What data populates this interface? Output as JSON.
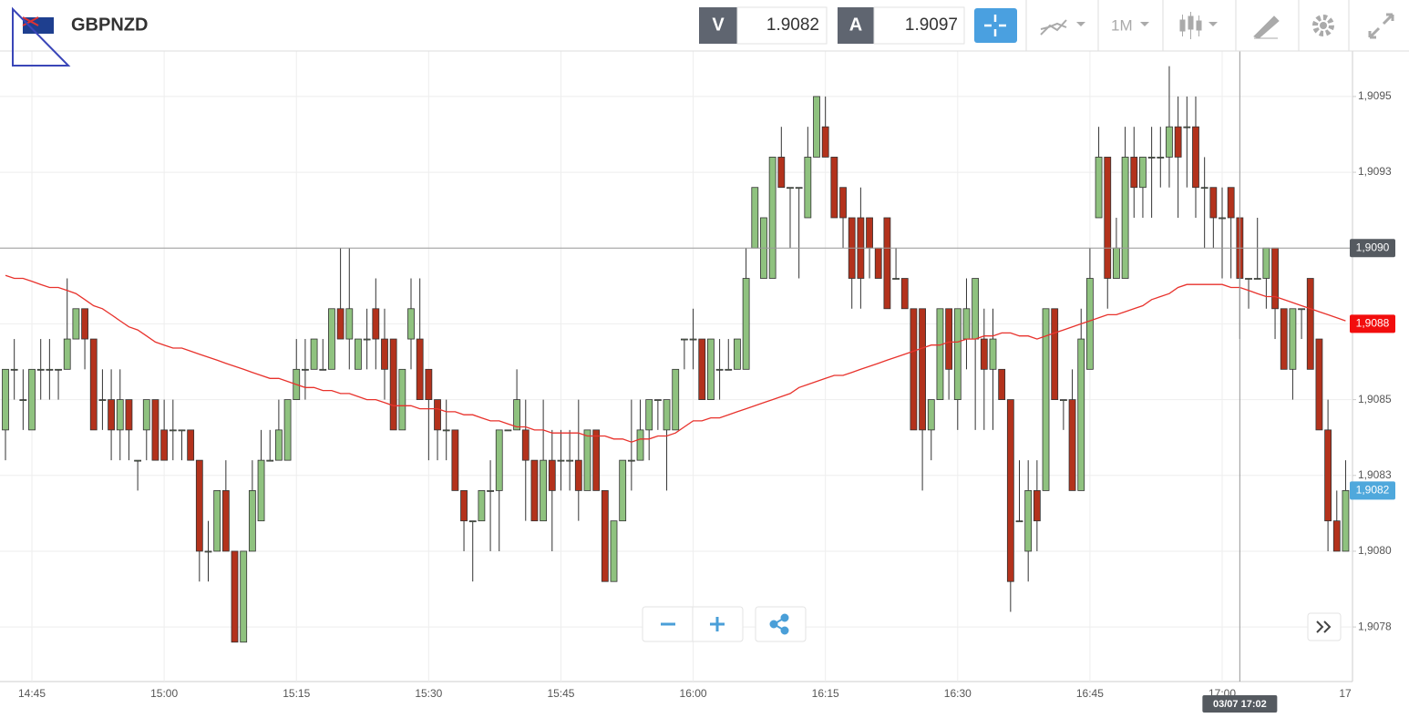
{
  "header": {
    "symbol": "GBPNZD",
    "bid_label": "V",
    "bid": 1.9082,
    "ask_label": "A",
    "ask": 1.9097,
    "timeframe": "1M"
  },
  "chart_data": {
    "type": "candlestick",
    "categories": [
      null,
      null,
      null,
      "14:45",
      null,
      null,
      null,
      null,
      null,
      null,
      null,
      null,
      null,
      null,
      null,
      null,
      null,
      null,
      "15:00",
      null,
      null,
      null,
      null,
      null,
      null,
      null,
      null,
      null,
      null,
      null,
      null,
      null,
      null,
      "15:15",
      null,
      null,
      null,
      null,
      null,
      null,
      null,
      null,
      null,
      null,
      null,
      null,
      null,
      null,
      "15:30",
      null,
      null,
      null,
      null,
      null,
      null,
      null,
      null,
      null,
      null,
      null,
      null,
      null,
      null,
      "15:45",
      null,
      null,
      null,
      null,
      null,
      null,
      null,
      null,
      null,
      null,
      null,
      null,
      null,
      null,
      "16:00",
      null,
      null,
      null,
      null,
      null,
      null,
      null,
      null,
      null,
      null,
      null,
      null,
      null,
      null,
      "16:15",
      null,
      null,
      null,
      null,
      null,
      null,
      null,
      null,
      null,
      null,
      null,
      null,
      null,
      null,
      "16:30",
      null,
      null,
      null,
      null,
      null,
      null,
      null,
      null,
      null,
      null,
      null,
      null,
      null,
      null,
      "16:45",
      null,
      null,
      null,
      null,
      null,
      null,
      null,
      null,
      null,
      null,
      null,
      null,
      null,
      null,
      "17:00",
      null,
      null,
      null,
      null,
      null,
      null,
      null,
      null,
      null,
      null,
      null,
      null,
      null,
      null,
      "17"
    ],
    "open": [
      1.9084,
      1.9086,
      1.9085,
      1.9084,
      1.9086,
      1.9086,
      1.9086,
      1.9086,
      1.9087,
      1.9088,
      1.9087,
      1.9085,
      1.9085,
      1.9084,
      1.9085,
      1.9083,
      1.9084,
      1.9085,
      1.9084,
      1.9084,
      1.9084,
      1.9084,
      1.9083,
      1.908,
      1.908,
      1.9082,
      1.908,
      1.9077,
      1.908,
      1.9081,
      1.9083,
      1.9083,
      1.9083,
      1.9085,
      1.9086,
      1.9086,
      1.9086,
      1.9086,
      1.9088,
      1.9087,
      1.9086,
      1.9087,
      1.9088,
      1.9087,
      1.9087,
      1.9084,
      1.9087,
      1.9087,
      1.9086,
      1.9085,
      1.9084,
      1.9084,
      1.9082,
      1.9081,
      1.9081,
      1.9082,
      1.9082,
      1.9084,
      1.9084,
      1.9084,
      1.9083,
      1.9081,
      1.9083,
      1.9083,
      1.9083,
      1.9083,
      1.9082,
      1.9084,
      1.9082,
      1.9079,
      1.9081,
      1.9083,
      1.9083,
      1.9084,
      1.9085,
      1.9084,
      1.9084,
      1.9087,
      1.9087,
      1.9087,
      1.9085,
      1.9086,
      1.9086,
      1.9086,
      1.9086,
      1.909,
      1.9089,
      1.9089,
      1.9093,
      1.9092,
      1.9092,
      1.9091,
      1.9093,
      1.9094,
      1.9093,
      1.9092,
      1.9091,
      1.9091,
      1.9091,
      1.909,
      1.9091,
      1.9089,
      1.9089,
      1.9088,
      1.9088,
      1.9084,
      1.9085,
      1.9088,
      1.9085,
      1.9087,
      1.9087,
      1.9087,
      1.9086,
      1.9086,
      1.9085,
      1.9081,
      1.908,
      1.9082,
      1.9082,
      1.9088,
      1.9085,
      1.9085,
      1.9082,
      1.9086,
      1.9091,
      1.9093,
      1.9089,
      1.9089,
      1.9093,
      1.9092,
      1.9093,
      1.9093,
      1.9093,
      1.9094,
      1.9094,
      1.9094,
      1.9092,
      1.9092,
      1.9091,
      1.9092,
      1.9091,
      1.9089,
      1.9089,
      1.9089,
      1.909,
      1.9088,
      1.9086,
      1.9088,
      1.9089,
      1.9087,
      1.9084,
      1.9081,
      1.908,
      null
    ],
    "high": [
      1.9086,
      1.9087,
      1.9086,
      1.9086,
      1.9087,
      1.9087,
      1.9086,
      1.9089,
      1.9088,
      1.9088,
      1.9087,
      1.9086,
      1.9086,
      1.9086,
      1.9085,
      1.9083,
      1.9085,
      1.9085,
      1.9085,
      1.9085,
      1.9084,
      1.9084,
      1.9083,
      1.9081,
      1.9082,
      1.9083,
      1.908,
      1.908,
      1.9083,
      1.9084,
      1.9084,
      1.9085,
      1.9085,
      1.9087,
      1.9087,
      1.9087,
      1.9087,
      1.9088,
      1.909,
      1.909,
      1.9087,
      1.9088,
      1.9089,
      1.9088,
      1.9087,
      1.9086,
      1.9089,
      1.9089,
      1.9086,
      1.9085,
      1.9085,
      1.9084,
      1.9082,
      1.9081,
      1.9082,
      1.9083,
      1.9084,
      1.9084,
      1.9086,
      1.9085,
      1.9083,
      1.9085,
      1.9084,
      1.9084,
      1.9084,
      1.9085,
      1.9084,
      1.9084,
      1.9082,
      1.9081,
      1.9083,
      1.9085,
      1.9085,
      1.9085,
      1.9085,
      1.9085,
      1.9086,
      1.9087,
      1.9088,
      1.9087,
      1.9087,
      1.9087,
      1.9087,
      1.9087,
      1.909,
      1.9092,
      1.9091,
      1.9093,
      1.9094,
      1.9092,
      1.9092,
      1.9094,
      1.9095,
      1.9095,
      1.9093,
      1.9092,
      1.9091,
      1.9092,
      1.9091,
      1.909,
      1.9091,
      1.909,
      1.9089,
      1.9088,
      1.9088,
      1.9085,
      1.9088,
      1.9088,
      1.9088,
      1.9089,
      1.9089,
      1.9088,
      1.9088,
      1.9086,
      1.9085,
      1.9083,
      1.9083,
      1.9083,
      1.9088,
      1.9088,
      1.9085,
      1.9086,
      1.9088,
      1.909,
      1.9094,
      1.9093,
      1.9091,
      1.9094,
      1.9094,
      1.9093,
      1.9094,
      1.9094,
      1.9096,
      1.9095,
      1.9095,
      1.9095,
      1.9093,
      1.9092,
      1.9092,
      1.9092,
      1.9091,
      1.9089,
      1.9091,
      1.909,
      1.909,
      1.9088,
      1.9088,
      1.9088,
      1.9089,
      1.9087,
      1.9085,
      1.9082,
      1.9083,
      null
    ],
    "low": [
      1.9083,
      1.9085,
      1.9084,
      1.9084,
      1.9085,
      1.9085,
      1.9085,
      1.9086,
      1.9087,
      1.9086,
      1.9084,
      1.9084,
      1.9083,
      1.9083,
      1.9083,
      1.9082,
      1.9083,
      1.9083,
      1.9083,
      1.9083,
      1.9083,
      1.9083,
      1.9079,
      1.9079,
      1.908,
      1.908,
      1.9077,
      1.9077,
      1.908,
      1.9081,
      1.9083,
      1.9083,
      1.9083,
      1.9085,
      1.9085,
      1.9086,
      1.9086,
      1.9086,
      1.9087,
      1.9086,
      1.9086,
      1.9086,
      1.9086,
      1.9085,
      1.9084,
      1.9084,
      1.9086,
      1.9085,
      1.9083,
      1.9083,
      1.9083,
      1.9082,
      1.908,
      1.9079,
      1.9081,
      1.908,
      1.908,
      1.9084,
      1.9084,
      1.9081,
      1.9081,
      1.9081,
      1.908,
      1.9082,
      1.9082,
      1.9081,
      1.9082,
      1.9082,
      1.9079,
      1.9079,
      1.9081,
      1.9082,
      1.9083,
      1.9083,
      1.9084,
      1.9082,
      1.9084,
      1.9086,
      1.9086,
      1.9085,
      1.9085,
      1.9085,
      1.9086,
      1.9086,
      1.9086,
      1.909,
      1.9089,
      1.9089,
      1.9092,
      1.909,
      1.9089,
      1.9091,
      1.9093,
      1.9093,
      1.9091,
      1.909,
      1.9088,
      1.9088,
      1.9089,
      1.9089,
      1.9088,
      1.9089,
      1.9088,
      1.9084,
      1.9082,
      1.9083,
      1.9085,
      1.9085,
      1.9084,
      1.9086,
      1.9084,
      1.9084,
      1.9084,
      1.9085,
      1.9078,
      1.9081,
      1.9079,
      1.908,
      1.9082,
      1.9085,
      1.9084,
      1.9082,
      1.9082,
      1.9086,
      1.9091,
      1.9088,
      1.9089,
      1.9089,
      1.9091,
      1.9091,
      1.9091,
      1.9092,
      1.9092,
      1.9091,
      1.9092,
      1.9091,
      1.909,
      1.909,
      1.9089,
      1.9089,
      1.9087,
      1.9088,
      1.9089,
      1.9088,
      1.9087,
      1.9086,
      1.9085,
      1.9087,
      1.9086,
      1.9084,
      1.908,
      1.908,
      1.908,
      null
    ],
    "close": [
      1.9086,
      1.9086,
      1.9085,
      1.9086,
      1.9086,
      1.9086,
      1.9086,
      1.9087,
      1.9088,
      1.9087,
      1.9084,
      1.9085,
      1.9084,
      1.9085,
      1.9084,
      1.9083,
      1.9085,
      1.9083,
      1.9083,
      1.9084,
      1.9084,
      1.9083,
      1.908,
      1.908,
      1.9082,
      1.908,
      1.9077,
      1.908,
      1.9082,
      1.9083,
      1.9083,
      1.9084,
      1.9085,
      1.9086,
      1.9086,
      1.9087,
      1.9086,
      1.9088,
      1.9087,
      1.9088,
      1.9087,
      1.9087,
      1.9087,
      1.9086,
      1.9084,
      1.9086,
      1.9088,
      1.9085,
      1.9085,
      1.9084,
      1.9084,
      1.9082,
      1.9081,
      1.9081,
      1.9082,
      1.9082,
      1.9084,
      1.9084,
      1.9085,
      1.9083,
      1.9081,
      1.9083,
      1.9082,
      1.9083,
      1.9083,
      1.9082,
      1.9084,
      1.9082,
      1.9079,
      1.9081,
      1.9083,
      1.9083,
      1.9084,
      1.9085,
      1.9085,
      1.9085,
      1.9086,
      1.9087,
      1.9087,
      1.9085,
      1.9087,
      1.9086,
      1.9086,
      1.9087,
      1.9089,
      1.9092,
      1.9091,
      1.9093,
      1.9092,
      1.9092,
      1.9092,
      1.9093,
      1.9095,
      1.9093,
      1.9091,
      1.9091,
      1.9089,
      1.9089,
      1.909,
      1.9089,
      1.9088,
      1.9089,
      1.9088,
      1.9084,
      1.9084,
      1.9085,
      1.9088,
      1.9086,
      1.9088,
      1.9088,
      1.9089,
      1.9086,
      1.9087,
      1.9085,
      1.9079,
      1.9081,
      1.9082,
      1.9081,
      1.9088,
      1.9085,
      1.9085,
      1.9082,
      1.9087,
      1.9089,
      1.9093,
      1.9089,
      1.909,
      1.9093,
      1.9092,
      1.9093,
      1.9093,
      1.9093,
      1.9094,
      1.9093,
      1.9094,
      1.9092,
      1.9092,
      1.9091,
      1.9091,
      1.9091,
      1.9089,
      1.9089,
      1.9089,
      1.909,
      1.9088,
      1.9086,
      1.9088,
      1.9088,
      1.9086,
      1.9084,
      1.9081,
      1.908,
      1.9082,
      null
    ],
    "up_color": "#8fc27f",
    "down_color": "#b3321c",
    "moving_average": {
      "color": "#e8322c",
      "values": [
        1.90891,
        1.9089,
        1.9089,
        1.90889,
        1.90888,
        1.90887,
        1.90887,
        1.90886,
        1.90885,
        1.90883,
        1.90881,
        1.9088,
        1.90878,
        1.90876,
        1.90874,
        1.90873,
        1.90871,
        1.90869,
        1.90868,
        1.90867,
        1.90867,
        1.90866,
        1.90865,
        1.90864,
        1.90863,
        1.90862,
        1.90861,
        1.9086,
        1.90859,
        1.90858,
        1.90857,
        1.90857,
        1.90856,
        1.90855,
        1.90854,
        1.90854,
        1.90853,
        1.90853,
        1.90852,
        1.90852,
        1.90851,
        1.9085,
        1.9085,
        1.90849,
        1.90848,
        1.90848,
        1.90848,
        1.90847,
        1.90847,
        1.90847,
        1.90846,
        1.90846,
        1.90845,
        1.90845,
        1.90844,
        1.90843,
        1.90843,
        1.90842,
        1.90841,
        1.90841,
        1.9084,
        1.9084,
        1.90839,
        1.90839,
        1.90839,
        1.90839,
        1.90838,
        1.90838,
        1.90838,
        1.90837,
        1.90837,
        1.90836,
        1.90837,
        1.90837,
        1.90838,
        1.90838,
        1.90839,
        1.90841,
        1.90843,
        1.90843,
        1.90844,
        1.90844,
        1.90845,
        1.90846,
        1.90847,
        1.90848,
        1.90849,
        1.9085,
        1.90851,
        1.90852,
        1.90854,
        1.90855,
        1.90856,
        1.90857,
        1.90858,
        1.90858,
        1.90859,
        1.9086,
        1.90861,
        1.90862,
        1.90863,
        1.90864,
        1.90865,
        1.90866,
        1.90867,
        1.90868,
        1.90868,
        1.90869,
        1.90869,
        1.9087,
        1.9087,
        1.90871,
        1.90871,
        1.90872,
        1.90872,
        1.90871,
        1.90871,
        1.9087,
        1.90871,
        1.90872,
        1.90873,
        1.90874,
        1.90875,
        1.90876,
        1.90877,
        1.90878,
        1.90878,
        1.90879,
        1.9088,
        1.90881,
        1.90883,
        1.90884,
        1.90885,
        1.90887,
        1.90888,
        1.90888,
        1.90888,
        1.90888,
        1.90888,
        1.90887,
        1.90887,
        1.90886,
        1.90885,
        1.90884,
        1.90884,
        1.90883,
        1.90882,
        1.90881,
        1.9088,
        1.90879,
        1.90878,
        1.90877,
        1.90876,
        null
      ]
    },
    "ylim": [
      1.90757,
      1.90965
    ],
    "yticks": [
      {
        "value": 1.9095,
        "label": "1,9095"
      },
      {
        "value": 1.90925,
        "label": "1,9093"
      },
      {
        "value": 1.909,
        "label": "1,9090"
      },
      {
        "value": 1.90875,
        "label": "1,9088"
      },
      {
        "value": 1.9085,
        "label": "1,9085"
      },
      {
        "value": 1.90825,
        "label": "1,9083"
      },
      {
        "value": 1.908,
        "label": "1,9080"
      },
      {
        "value": 1.90775,
        "label": "1,9078"
      }
    ],
    "grid": true,
    "last_price": {
      "value": 1.9082,
      "label": "1,9082",
      "color": "#4fa8dc"
    },
    "ma_last": {
      "value": 1.90875,
      "label": "1,9088",
      "color": "#f20d0d"
    },
    "crosshair": {
      "x": 140,
      "x_label": "03/07 17:02",
      "y": 1.909,
      "y_label": "1,9090"
    }
  }
}
